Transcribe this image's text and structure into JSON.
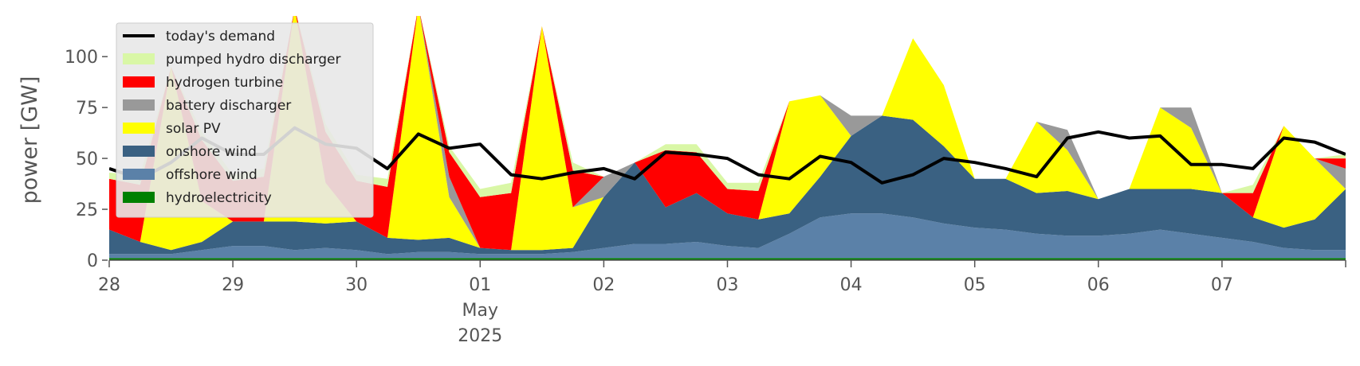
{
  "chart_data": {
    "type": "area",
    "ylabel": "power [GW]",
    "ylim": [
      0,
      120
    ],
    "xlim_days": [
      0,
      10
    ],
    "y_ticks": [
      0,
      25,
      50,
      75,
      100
    ],
    "x_ticks": [
      {
        "day": 0,
        "label": "28",
        "sub1": "",
        "sub2": ""
      },
      {
        "day": 1,
        "label": "29",
        "sub1": "",
        "sub2": ""
      },
      {
        "day": 2,
        "label": "30",
        "sub1": "",
        "sub2": ""
      },
      {
        "day": 3,
        "label": "01",
        "sub1": "May",
        "sub2": "2025"
      },
      {
        "day": 4,
        "label": "02",
        "sub1": "",
        "sub2": ""
      },
      {
        "day": 5,
        "label": "03",
        "sub1": "",
        "sub2": ""
      },
      {
        "day": 6,
        "label": "04",
        "sub1": "",
        "sub2": ""
      },
      {
        "day": 7,
        "label": "05",
        "sub1": "",
        "sub2": ""
      },
      {
        "day": 8,
        "label": "06",
        "sub1": "",
        "sub2": ""
      },
      {
        "day": 9,
        "label": "07",
        "sub1": "",
        "sub2": ""
      }
    ],
    "grid": false,
    "legend_position": "top-left",
    "x": [
      0,
      0.25,
      0.5,
      0.75,
      1,
      1.25,
      1.5,
      1.75,
      2,
      2.25,
      2.5,
      2.75,
      3,
      3.25,
      3.5,
      3.75,
      4,
      4.25,
      4.5,
      4.75,
      5,
      5.25,
      5.5,
      5.75,
      6,
      6.25,
      6.5,
      6.75,
      7,
      7.25,
      7.5,
      7.75,
      8,
      8.25,
      8.5,
      8.75,
      9,
      9.25,
      9.5,
      9.75,
      10
    ],
    "series": [
      {
        "name": "hydroelectricity",
        "color": "#008000",
        "values": [
          1,
          1,
          1,
          1,
          1,
          1,
          1,
          1,
          1,
          1,
          1,
          1,
          1,
          1,
          1,
          1,
          1,
          1,
          1,
          1,
          1,
          1,
          1,
          1,
          1,
          1,
          1,
          1,
          1,
          1,
          1,
          1,
          1,
          1,
          1,
          1,
          1,
          1,
          1,
          1,
          1
        ]
      },
      {
        "name": "offshore wind",
        "color": "#5b81a8",
        "values": [
          2,
          2,
          2,
          4,
          6,
          6,
          4,
          5,
          4,
          2,
          3,
          3,
          2,
          2,
          2,
          3,
          5,
          7,
          7,
          8,
          6,
          5,
          12,
          20,
          22,
          22,
          20,
          17,
          15,
          14,
          12,
          11,
          11,
          12,
          14,
          12,
          10,
          8,
          5,
          4,
          4
        ]
      },
      {
        "name": "onshore wind",
        "color": "#3a6182",
        "values": [
          12,
          6,
          2,
          4,
          12,
          12,
          14,
          12,
          14,
          8,
          6,
          7,
          3,
          2,
          2,
          2,
          25,
          40,
          18,
          24,
          16,
          14,
          10,
          20,
          38,
          48,
          48,
          38,
          24,
          25,
          20,
          22,
          18,
          22,
          20,
          22,
          22,
          12,
          10,
          15,
          30
        ]
      },
      {
        "name": "solar PV",
        "color": "#ffff00",
        "values": [
          0,
          0,
          90,
          20,
          0,
          0,
          105,
          20,
          0,
          0,
          115,
          20,
          0,
          0,
          110,
          20,
          0,
          0,
          0,
          0,
          0,
          0,
          55,
          40,
          0,
          0,
          40,
          30,
          0,
          0,
          35,
          20,
          0,
          0,
          40,
          30,
          0,
          0,
          50,
          30,
          0
        ]
      },
      {
        "name": "battery discharger",
        "color": "#999999",
        "values": [
          0,
          0,
          0,
          0,
          0,
          0,
          0,
          0,
          0,
          0,
          0,
          10,
          0,
          0,
          0,
          0,
          10,
          0,
          0,
          0,
          0,
          0,
          0,
          0,
          10,
          0,
          0,
          0,
          0,
          0,
          0,
          10,
          0,
          0,
          0,
          10,
          0,
          0,
          0,
          0,
          10
        ]
      },
      {
        "name": "hydrogen turbine",
        "color": "#ff0000",
        "values": [
          25,
          28,
          0,
          30,
          20,
          22,
          0,
          25,
          20,
          25,
          0,
          12,
          25,
          28,
          0,
          18,
          0,
          0,
          28,
          20,
          12,
          14,
          0,
          0,
          0,
          0,
          0,
          0,
          0,
          0,
          0,
          0,
          0,
          0,
          0,
          0,
          0,
          12,
          0,
          0,
          5
        ]
      },
      {
        "name": "pumped hydro discharger",
        "color": "#d9f7a6",
        "values": [
          3,
          5,
          0,
          4,
          3,
          4,
          0,
          4,
          3,
          4,
          0,
          3,
          4,
          5,
          0,
          4,
          0,
          0,
          3,
          4,
          3,
          4,
          0,
          0,
          0,
          0,
          0,
          0,
          0,
          0,
          0,
          0,
          0,
          0,
          0,
          0,
          0,
          4,
          0,
          0,
          2
        ]
      }
    ],
    "demand": {
      "name": "today's demand",
      "color": "#000000",
      "values": [
        45,
        40,
        48,
        60,
        52,
        52,
        65,
        57,
        55,
        45,
        62,
        55,
        57,
        42,
        40,
        43,
        45,
        40,
        53,
        52,
        50,
        42,
        40,
        51,
        48,
        38,
        42,
        50,
        48,
        45,
        41,
        60,
        63,
        60,
        61,
        47,
        47,
        45,
        60,
        58,
        52
      ]
    },
    "legend_order": [
      "today's demand",
      "pumped hydro discharger",
      "hydrogen turbine",
      "battery discharger",
      "solar PV",
      "onshore wind",
      "offshore wind",
      "hydroelectricity"
    ]
  }
}
